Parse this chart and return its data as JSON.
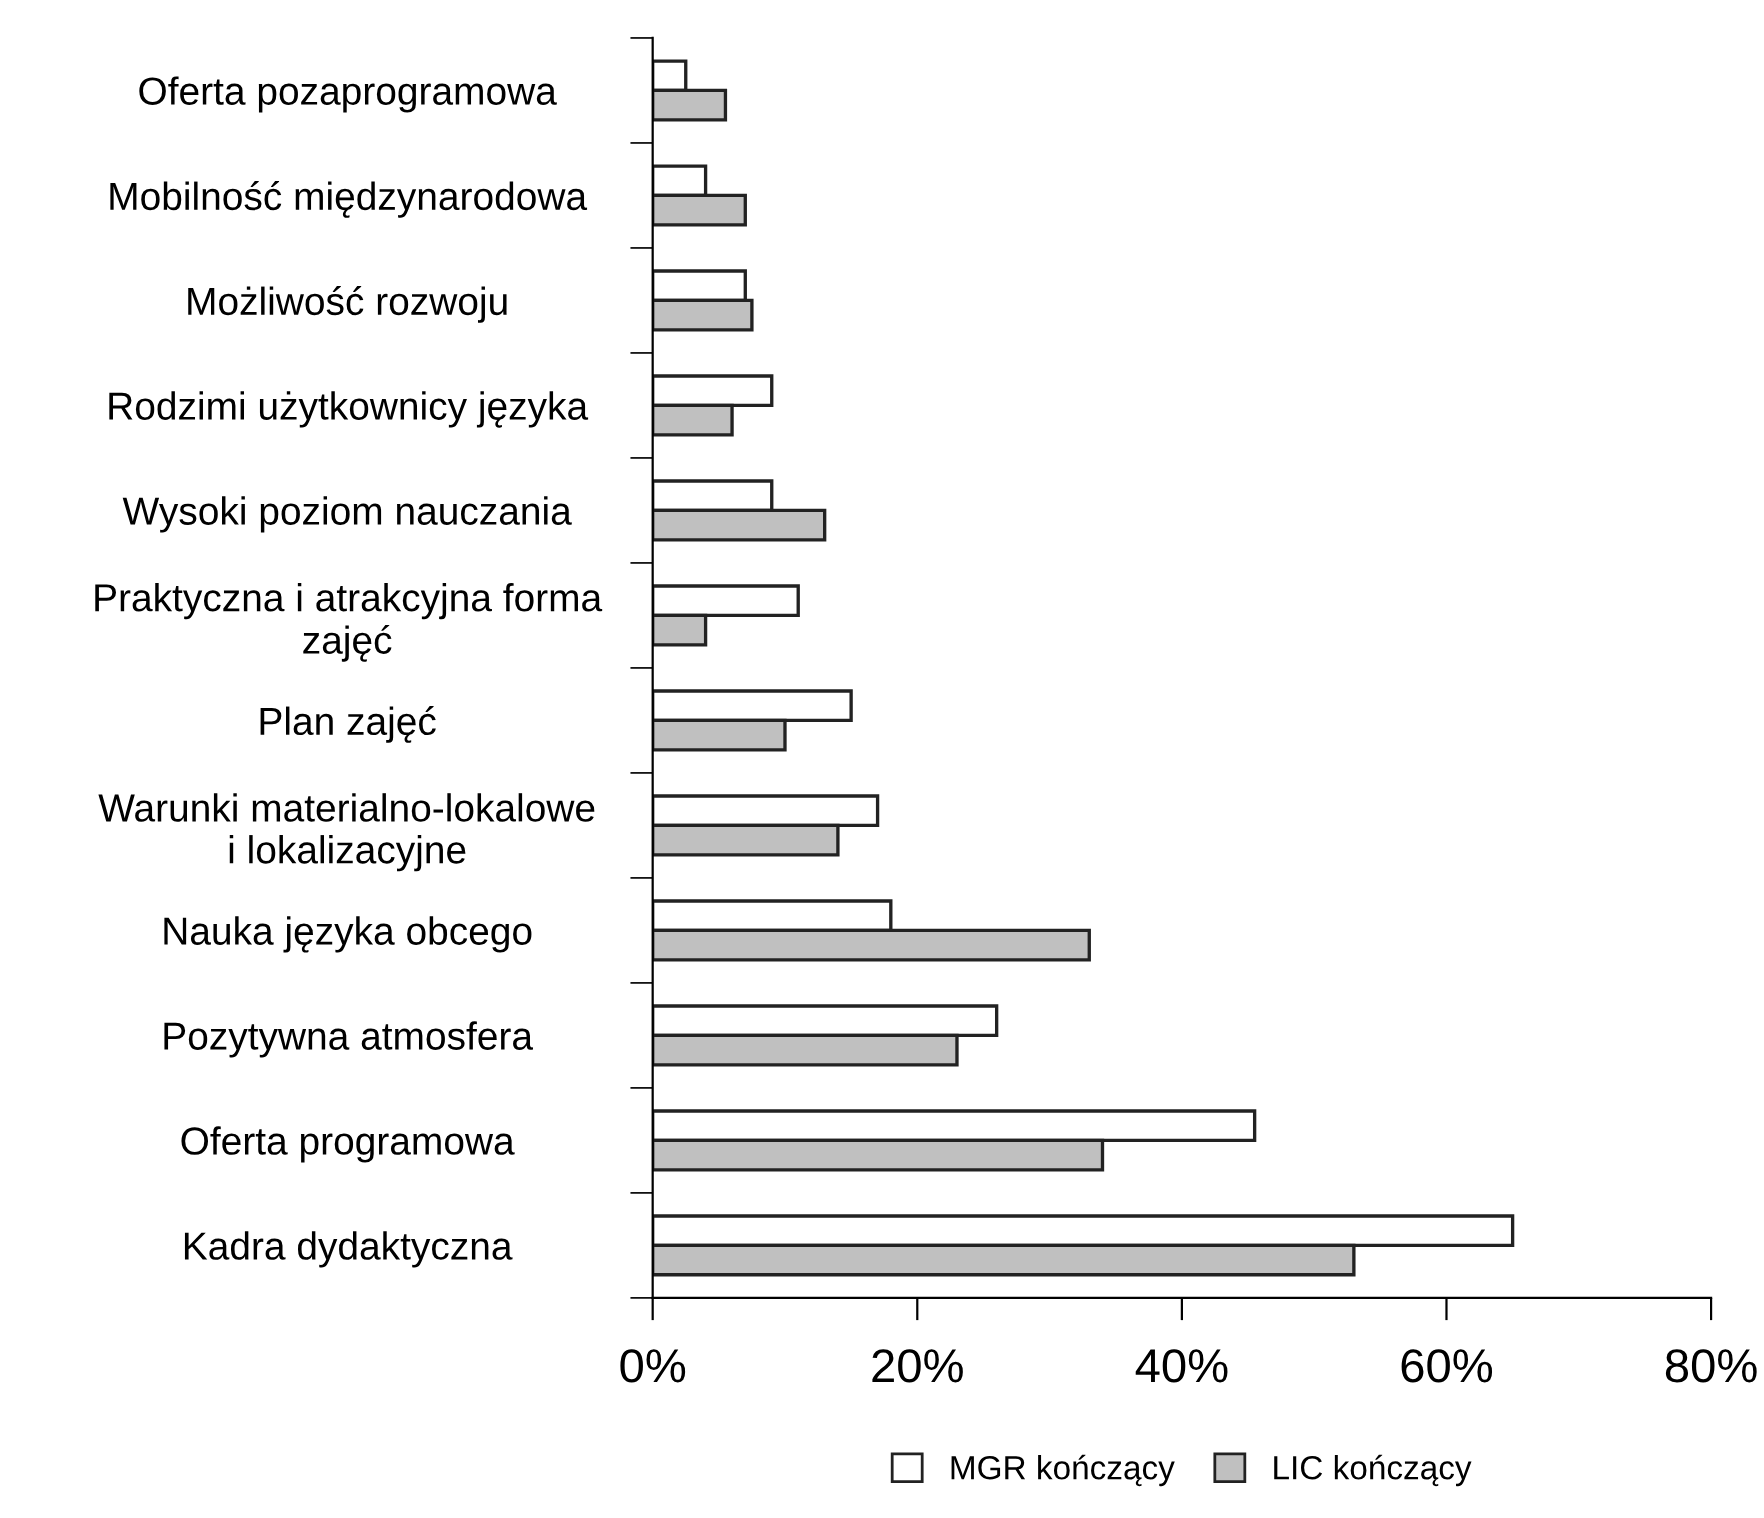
{
  "chart_data": {
    "type": "bar",
    "orientation": "horizontal",
    "categories": [
      "Oferta pozaprogramowa",
      "Mobilność międzynarodowa",
      "Możliwość rozwoju",
      "Rodzimi użytkownicy języka",
      "Wysoki poziom nauczania",
      "Praktyczna i atrakcyjna forma\nzajęć",
      "Plan zajęć",
      "Warunki materialno-lokalowe\ni lokalizacyjne",
      "Nauka języka obcego",
      "Pozytywna atmosfera",
      "Oferta programowa",
      "Kadra dydaktyczna"
    ],
    "series": [
      {
        "name": "MGR kończący",
        "color": "#ffffff",
        "values": [
          2.5,
          4,
          7,
          9,
          9,
          11,
          15,
          17,
          18,
          26,
          45.5,
          65
        ]
      },
      {
        "name": "LIC kończący",
        "color": "#c0c0c0",
        "values": [
          5.5,
          7,
          7.5,
          6,
          13,
          4,
          10,
          14,
          33,
          23,
          34,
          53
        ]
      }
    ],
    "xlim": [
      0,
      80
    ],
    "xticks": [
      {
        "value": 0,
        "label": "0%"
      },
      {
        "value": 20,
        "label": "20%"
      },
      {
        "value": 40,
        "label": "40%"
      },
      {
        "value": 60,
        "label": "60%"
      },
      {
        "value": 80,
        "label": "80%"
      }
    ],
    "grid": false,
    "legend": "bottom"
  }
}
